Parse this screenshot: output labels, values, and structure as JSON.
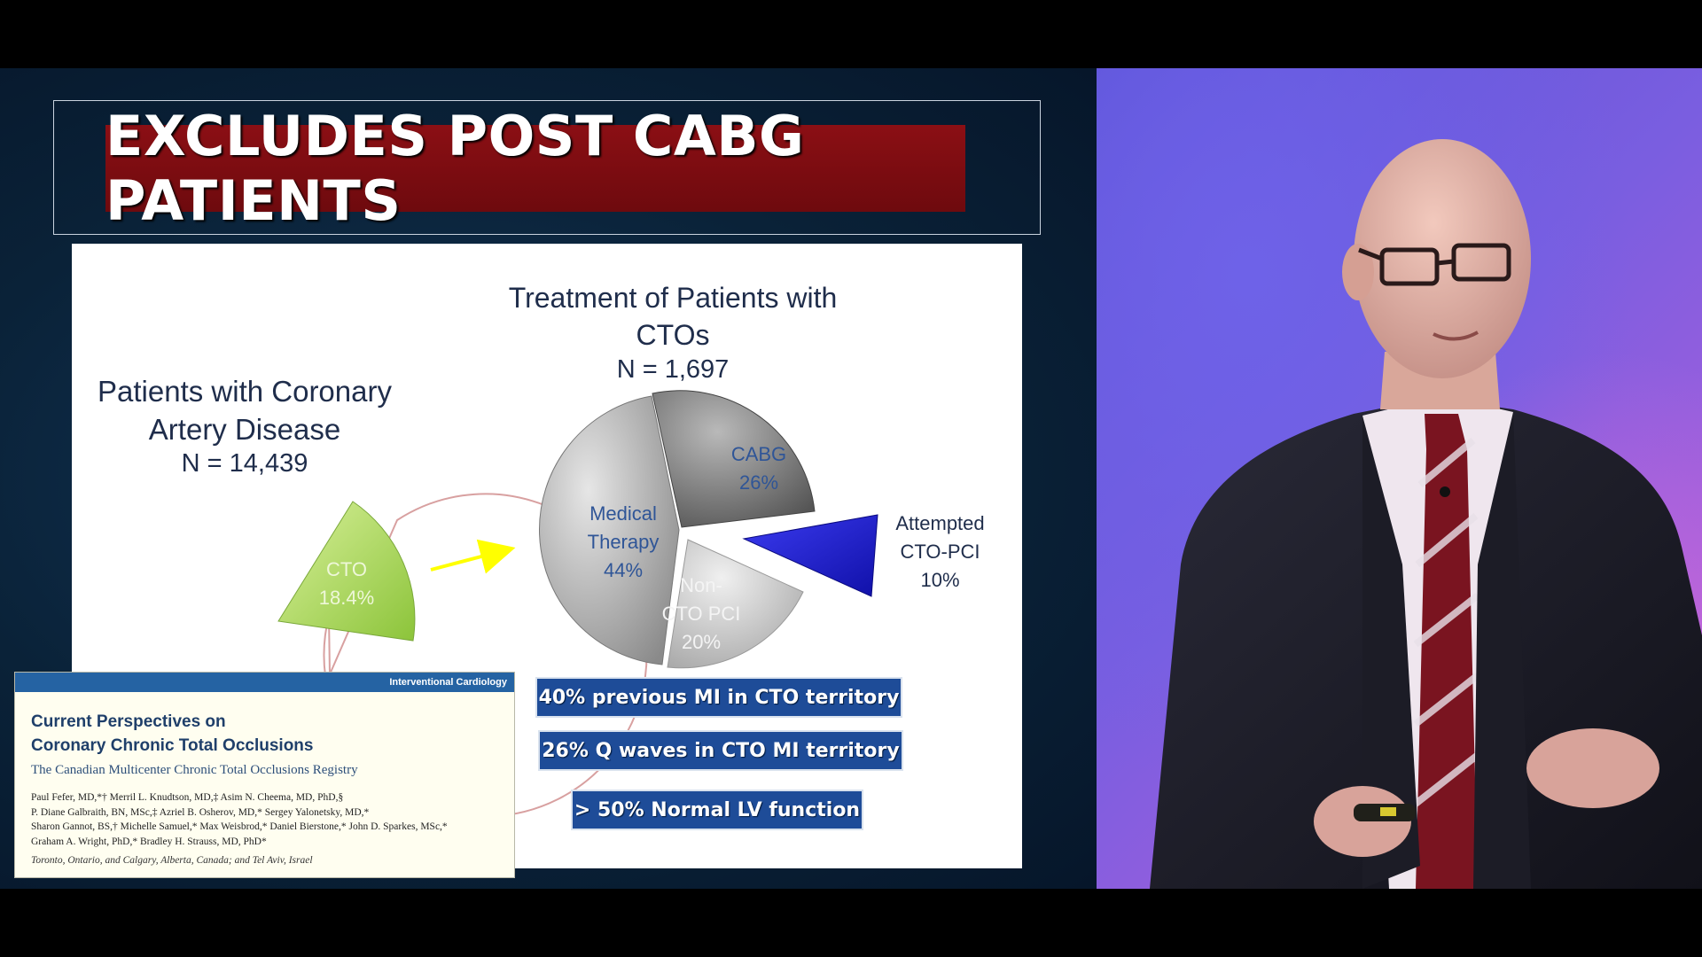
{
  "slide": {
    "banner": "EXCLUDES POST CABG PATIENTS",
    "left_chart": {
      "title": "Patients with Coronary Artery Disease",
      "n": "N = 14,439",
      "slice_label": "CTO",
      "slice_pct": "18.4%"
    },
    "right_chart": {
      "title": "Treatment of Patients with CTOs",
      "n": "N = 1,697",
      "slices": [
        {
          "name": "CABG",
          "pct": "26%",
          "color": "#6e6e6e"
        },
        {
          "name": "Medical Therapy",
          "pct": "44%",
          "color": "#a9a9a9"
        },
        {
          "name": "Non-CTO PCI",
          "pct": "20%",
          "color": "#d0d0d0"
        },
        {
          "name": "Attempted CTO-PCI",
          "pct": "10%",
          "color": "#2a2ad6"
        }
      ]
    },
    "stats": [
      "40% previous MI in CTO territory",
      "26% Q waves in CTO MI territory",
      "> 50% Normal LV function"
    ]
  },
  "paper": {
    "section": "Interventional Cardiology",
    "title_line1": "Current Perspectives on",
    "title_line2": "Coronary Chronic Total Occlusions",
    "subtitle": "The Canadian Multicenter Chronic Total Occlusions Registry",
    "authors_line1": "Paul Fefer, MD,*† Merril L. Knudtson, MD,‡ Asim N. Cheema, MD, PhD,§",
    "authors_line2": "P. Diane Galbraith, BN, MSc,‡ Azriel B. Osherov, MD,* Sergey Yalonetsky, MD,*",
    "authors_line3": "Sharon Gannot, BS,† Michelle Samuel,* Max Weisbrod,* Daniel Bierstone,* John D. Sparkes, MSc,*",
    "authors_line4": "Graham A. Wright, PhD,* Bradley H. Strauss, MD, PhD*",
    "location": "Toronto, Ontario, and Calgary, Alberta, Canada; and Tel Aviv, Israel"
  },
  "colors": {
    "banner": "#8b0f14",
    "cto_slice": "#a8d84a",
    "stat_box": "#1e4c98",
    "arrow": "#ffff00"
  }
}
